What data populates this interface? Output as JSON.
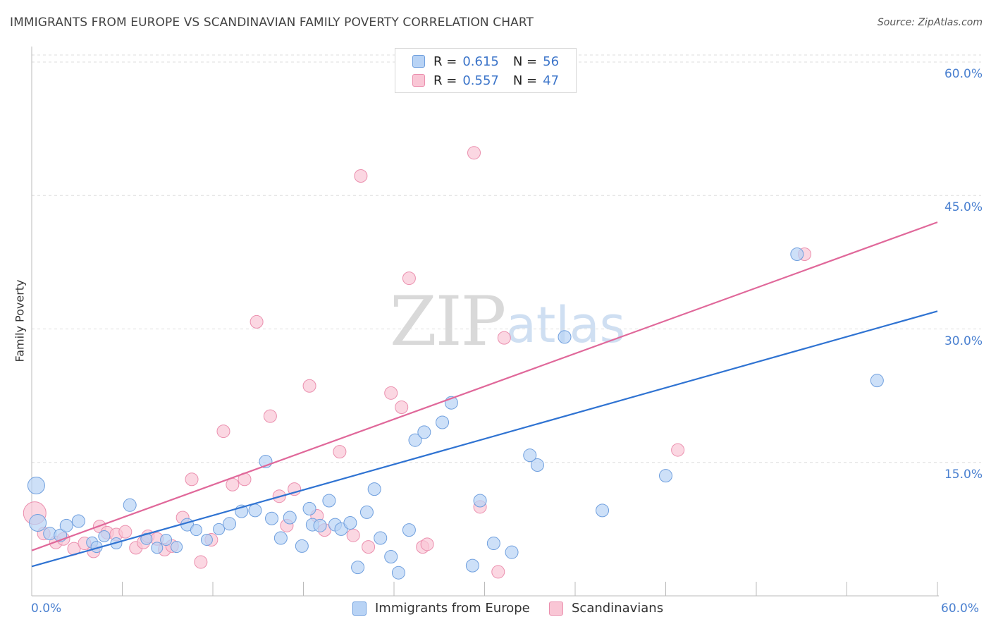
{
  "title": "IMMIGRANTS FROM EUROPE VS SCANDINAVIAN FAMILY POVERTY CORRELATION CHART",
  "source": "Source: ZipAtlas.com",
  "watermark": {
    "zip": "ZIP",
    "atlas": "atlas"
  },
  "legend_top": {
    "rows": [
      {
        "r_label": "R =",
        "r_value": "0.615",
        "n_label": "N =",
        "n_value": "56"
      },
      {
        "r_label": "R =",
        "r_value": "0.557",
        "n_label": "N =",
        "n_value": "47"
      }
    ]
  },
  "legend_bottom": [
    "Immigrants from Europe",
    "Scandinavians"
  ],
  "colors": {
    "blue_fill": "#b8d3f5",
    "blue_stroke": "#6f9fde",
    "blue_line": "#2f73d2",
    "pink_fill": "#f9c6d5",
    "pink_stroke": "#eb8fae",
    "pink_line": "#e0689a",
    "tick_text": "#4a80d0",
    "grid": "#dddddd"
  },
  "chart_data": {
    "type": "scatter",
    "title": "IMMIGRANTS FROM EUROPE VS SCANDINAVIAN FAMILY POVERTY CORRELATION CHART",
    "xlabel": "",
    "ylabel": "Family Poverty",
    "xlim": [
      0,
      60
    ],
    "ylim": [
      0,
      60
    ],
    "x_tick_labels": [
      "0.0%",
      "60.0%"
    ],
    "y_ticks": [
      {
        "value": 15,
        "label": "15.0%"
      },
      {
        "value": 30,
        "label": "30.0%"
      },
      {
        "value": 45,
        "label": "45.0%"
      },
      {
        "value": 60,
        "label": "60.0%"
      }
    ],
    "grid": true,
    "legend_position": "bottom",
    "series": [
      {
        "name": "Immigrants from Europe",
        "color": "#6f9fde",
        "trend": {
          "x": [
            0,
            60
          ],
          "y": [
            3.3,
            32.0
          ]
        },
        "points": [
          [
            0.3,
            12.4,
            12
          ],
          [
            0.4,
            8.2,
            12
          ],
          [
            1.2,
            7.0,
            9
          ],
          [
            1.9,
            6.8,
            9
          ],
          [
            2.3,
            7.9,
            9
          ],
          [
            3.1,
            8.4,
            9
          ],
          [
            4.0,
            6.0,
            8
          ],
          [
            4.3,
            5.5,
            8
          ],
          [
            4.8,
            6.7,
            8
          ],
          [
            5.6,
            5.9,
            8
          ],
          [
            6.5,
            10.2,
            9
          ],
          [
            7.6,
            6.4,
            8
          ],
          [
            8.3,
            5.4,
            8
          ],
          [
            8.9,
            6.3,
            8
          ],
          [
            9.6,
            5.5,
            8
          ],
          [
            10.3,
            8.0,
            9
          ],
          [
            10.9,
            7.4,
            8
          ],
          [
            11.6,
            6.3,
            8
          ],
          [
            12.4,
            7.5,
            8
          ],
          [
            13.1,
            8.1,
            9
          ],
          [
            13.9,
            9.5,
            9
          ],
          [
            14.8,
            9.6,
            9
          ],
          [
            15.5,
            15.1,
            9
          ],
          [
            15.9,
            8.7,
            9
          ],
          [
            16.5,
            6.5,
            9
          ],
          [
            17.1,
            8.8,
            9
          ],
          [
            17.9,
            5.6,
            9
          ],
          [
            18.4,
            9.8,
            9
          ],
          [
            18.6,
            8.0,
            9
          ],
          [
            19.1,
            7.9,
            9
          ],
          [
            19.7,
            10.7,
            9
          ],
          [
            20.1,
            8.0,
            9
          ],
          [
            20.5,
            7.5,
            9
          ],
          [
            21.1,
            8.2,
            9
          ],
          [
            21.6,
            3.2,
            9
          ],
          [
            22.2,
            9.4,
            9
          ],
          [
            22.7,
            12.0,
            9
          ],
          [
            23.1,
            6.5,
            9
          ],
          [
            23.8,
            4.4,
            9
          ],
          [
            24.3,
            2.6,
            9
          ],
          [
            25.0,
            7.4,
            9
          ],
          [
            25.4,
            17.5,
            9
          ],
          [
            26.0,
            18.4,
            9
          ],
          [
            27.2,
            19.5,
            9
          ],
          [
            27.8,
            21.7,
            9
          ],
          [
            29.2,
            3.4,
            9
          ],
          [
            29.7,
            10.7,
            9
          ],
          [
            30.6,
            5.9,
            9
          ],
          [
            31.8,
            4.9,
            9
          ],
          [
            35.3,
            29.1,
            9
          ],
          [
            33.5,
            14.7,
            9
          ],
          [
            33.0,
            15.8,
            9
          ],
          [
            37.8,
            9.6,
            9
          ],
          [
            42.0,
            13.5,
            9
          ],
          [
            50.7,
            38.4,
            9
          ],
          [
            56.0,
            24.2,
            9
          ]
        ]
      },
      {
        "name": "Scandinavians",
        "color": "#eb8fae",
        "trend": {
          "x": [
            0,
            60
          ],
          "y": [
            5.1,
            42.0
          ]
        },
        "points": [
          [
            0.2,
            9.3,
            16
          ],
          [
            0.8,
            7.0,
            9
          ],
          [
            1.6,
            6.0,
            9
          ],
          [
            2.1,
            6.4,
            9
          ],
          [
            2.8,
            5.3,
            9
          ],
          [
            3.5,
            5.9,
            9
          ],
          [
            4.1,
            5.0,
            9
          ],
          [
            4.5,
            7.8,
            9
          ],
          [
            5.0,
            7.1,
            9
          ],
          [
            5.6,
            6.9,
            9
          ],
          [
            6.2,
            7.2,
            9
          ],
          [
            6.9,
            5.4,
            9
          ],
          [
            7.4,
            6.0,
            9
          ],
          [
            7.7,
            6.7,
            9
          ],
          [
            8.3,
            6.4,
            9
          ],
          [
            8.8,
            5.2,
            9
          ],
          [
            9.3,
            5.6,
            9
          ],
          [
            10.0,
            8.8,
            9
          ],
          [
            10.6,
            13.1,
            9
          ],
          [
            11.2,
            3.8,
            9
          ],
          [
            11.9,
            6.3,
            9
          ],
          [
            12.7,
            18.5,
            9
          ],
          [
            13.3,
            12.5,
            9
          ],
          [
            14.1,
            13.1,
            9
          ],
          [
            14.9,
            30.8,
            9
          ],
          [
            15.8,
            20.2,
            9
          ],
          [
            16.4,
            11.2,
            9
          ],
          [
            16.9,
            7.9,
            9
          ],
          [
            17.4,
            12.0,
            9
          ],
          [
            18.4,
            23.6,
            9
          ],
          [
            18.9,
            9.0,
            9
          ],
          [
            19.4,
            7.4,
            9
          ],
          [
            20.4,
            16.2,
            9
          ],
          [
            21.3,
            6.8,
            9
          ],
          [
            21.8,
            47.2,
            9
          ],
          [
            22.3,
            5.5,
            9
          ],
          [
            23.8,
            22.8,
            9
          ],
          [
            24.5,
            21.2,
            9
          ],
          [
            25.0,
            35.7,
            9
          ],
          [
            25.9,
            5.5,
            9
          ],
          [
            26.2,
            5.8,
            9
          ],
          [
            29.3,
            49.8,
            9
          ],
          [
            29.7,
            10.0,
            9
          ],
          [
            30.9,
            2.7,
            9
          ],
          [
            31.3,
            29.0,
            9
          ],
          [
            42.8,
            16.4,
            9
          ],
          [
            51.2,
            38.4,
            9
          ]
        ]
      }
    ]
  }
}
